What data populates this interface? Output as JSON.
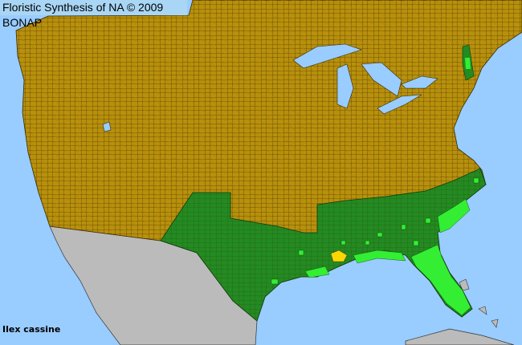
{
  "title": "Floristic Synthesis of NA © 2009 BONAP",
  "species": "Ilex cassine",
  "colors": {
    "ocean": "#99ccff",
    "not_present": "#b8900c",
    "present_state": "#228b22",
    "present_county": "#33ee33",
    "rare_county": "#ffd700",
    "outside_area": "#bbbbbb",
    "borders": "#3a2a00"
  }
}
